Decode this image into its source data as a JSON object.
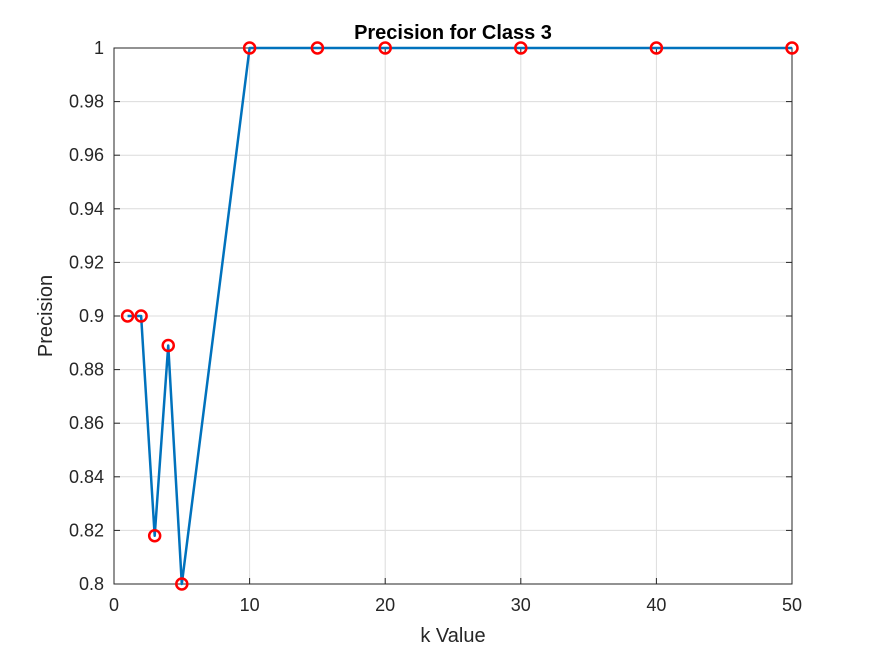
{
  "chart_data": {
    "type": "line",
    "title": "Precision for Class 3",
    "xlabel": "k Value",
    "ylabel": "Precision",
    "xlim": [
      0,
      50
    ],
    "ylim": [
      0.8,
      1.0
    ],
    "x_ticks": [
      0,
      10,
      20,
      30,
      40,
      50
    ],
    "y_ticks": [
      0.8,
      0.82,
      0.84,
      0.86,
      0.88,
      0.9,
      0.92,
      0.94,
      0.96,
      0.98,
      1
    ],
    "x_tick_labels": [
      "0",
      "10",
      "20",
      "30",
      "40",
      "50"
    ],
    "y_tick_labels": [
      "0.8",
      "0.82",
      "0.84",
      "0.86",
      "0.88",
      "0.9",
      "0.92",
      "0.94",
      "0.96",
      "0.98",
      "1"
    ],
    "grid": true,
    "series": [
      {
        "x": [
          1,
          2,
          3,
          4,
          5,
          10,
          15,
          20,
          30,
          40,
          50
        ],
        "y": [
          0.9,
          0.9,
          0.818,
          0.889,
          0.8,
          1.0,
          1.0,
          1.0,
          1.0,
          1.0,
          1.0
        ],
        "line_color": "#0072BD",
        "marker": "circle",
        "marker_color": "#FF0000"
      }
    ]
  }
}
